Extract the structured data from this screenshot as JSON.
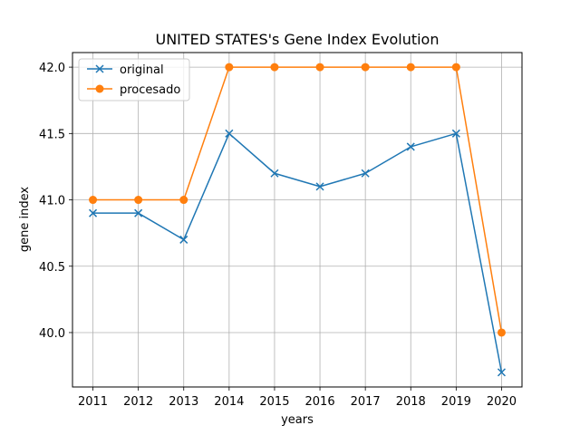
{
  "chart_data": {
    "type": "line",
    "title": "UNITED STATES's Gene Index Evolution",
    "xlabel": "years",
    "ylabel": "gene index",
    "x": [
      2011,
      2012,
      2013,
      2014,
      2015,
      2016,
      2017,
      2018,
      2019,
      2020
    ],
    "xticks": [
      "2011",
      "2012",
      "2013",
      "2014",
      "2015",
      "2016",
      "2017",
      "2018",
      "2019",
      "2020"
    ],
    "yticks": [
      "40.0",
      "40.5",
      "41.0",
      "41.5",
      "42.0"
    ],
    "ylim": [
      39.59,
      42.11
    ],
    "grid": true,
    "legend_position": "top-left",
    "series": [
      {
        "name": "original",
        "color": "#1f77b4",
        "marker": "x",
        "values": [
          40.9,
          40.9,
          40.7,
          41.5,
          41.2,
          41.1,
          41.2,
          41.4,
          41.5,
          39.7
        ]
      },
      {
        "name": "procesado",
        "color": "#ff7f0e",
        "marker": "circle",
        "values": [
          41.0,
          41.0,
          41.0,
          42.0,
          42.0,
          42.0,
          42.0,
          42.0,
          42.0,
          40.0
        ]
      }
    ]
  }
}
